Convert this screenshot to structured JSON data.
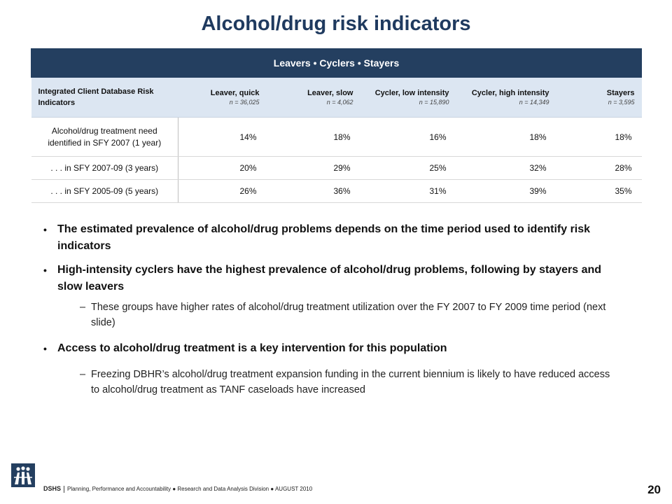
{
  "title": "Alcohol/drug risk indicators",
  "table": {
    "band": "Leavers • Cyclers • Stayers",
    "row_header_label": "Integrated Client Database Risk Indicators",
    "columns": [
      {
        "label": "Leaver, quick",
        "n": "n = 36,025"
      },
      {
        "label": "Leaver, slow",
        "n": "n = 4,062"
      },
      {
        "label": "Cycler, low intensity",
        "n": "n = 15,890"
      },
      {
        "label": "Cycler, high intensity",
        "n": "n = 14,349"
      },
      {
        "label": "Stayers",
        "n": "n = 3,595"
      }
    ],
    "rows": [
      {
        "label": "Alcohol/drug treatment need identified in SFY 2007  (1 year)",
        "values": [
          "14%",
          "18%",
          "16%",
          "18%",
          "18%"
        ]
      },
      {
        "label": ". . . in SFY 2007-09  (3 years)",
        "values": [
          "20%",
          "29%",
          "25%",
          "32%",
          "28%"
        ]
      },
      {
        "label": ". . . in SFY 2005-09  (5 years)",
        "values": [
          "26%",
          "36%",
          "31%",
          "39%",
          "35%"
        ]
      }
    ]
  },
  "bullets": [
    {
      "text": "The estimated prevalence of alcohol/drug  problems depends on the time period used to identify risk indicators",
      "sub": []
    },
    {
      "text": "High-intensity  cyclers have the highest prevalence of alcohol/drug  problems, following by stayers and slow leavers",
      "sub": [
        "These groups have higher rates of alcohol/drug treatment utilization over the FY 2007 to FY 2009 time period (next slide)"
      ]
    },
    {
      "text": "Access to alcohol/drug  treatment is a key intervention for this population",
      "sub": [
        "Freezing DBHR’s alcohol/drug treatment expansion funding in the current biennium is likely to have reduced access to alcohol/drug treatment as TANF caseloads have increased"
      ]
    }
  ],
  "footer": {
    "org": "DSHS",
    "text": "Planning, Performance and Accountability ● Research and Data Analysis Division ● AUGUST 2010",
    "page": "20"
  },
  "colors": {
    "header_band": "#243f60",
    "title": "#1f3a5f",
    "subheader_bg": "#dce6f2"
  },
  "icons": {
    "logo": "dshs-logo-icon"
  }
}
